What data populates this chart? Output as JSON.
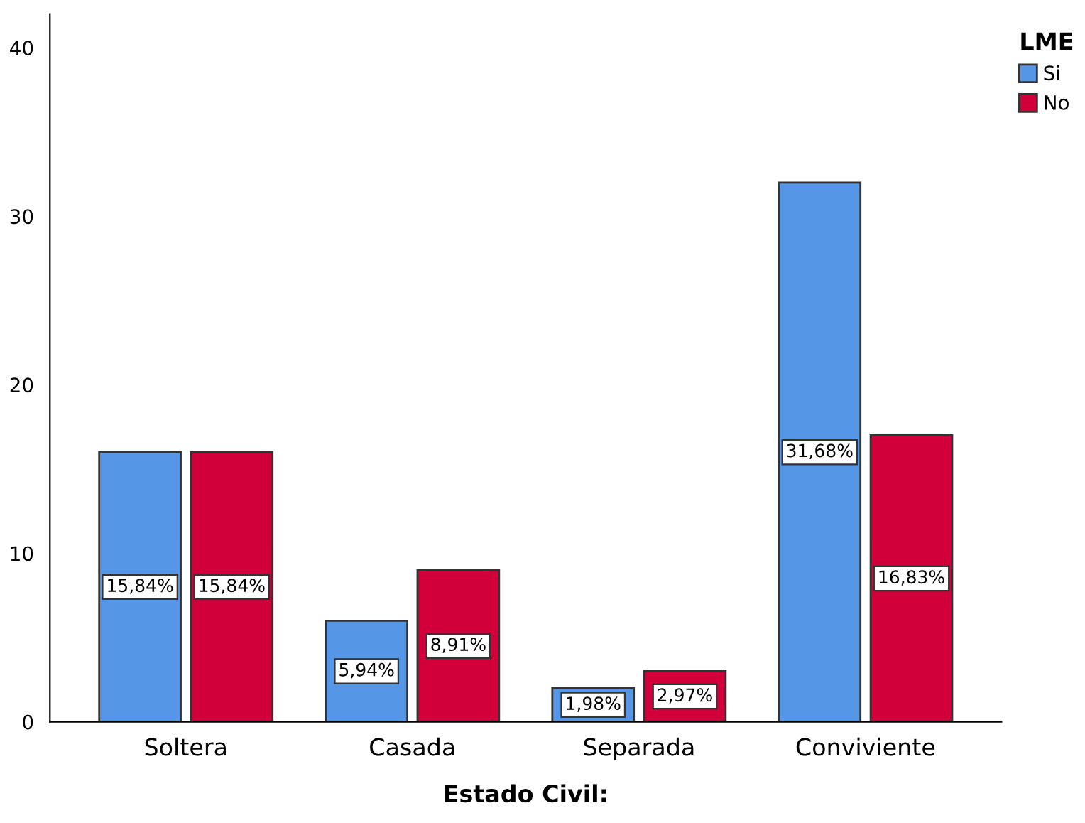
{
  "chart_data": {
    "type": "bar",
    "xlabel": "Estado Civil:",
    "legend_title": "LME",
    "categories": [
      "Soltera",
      "Casada",
      "Separada",
      "Conviviente"
    ],
    "series": [
      {
        "name": "Si",
        "color": "#5596e6",
        "values": [
          16,
          6,
          2,
          32
        ]
      },
      {
        "name": "No",
        "color": "#d1003a",
        "values": [
          16,
          9,
          3,
          17
        ]
      }
    ],
    "annotations": [
      "15,84%",
      "5,94%",
      "1,98%",
      "31,68%",
      "15,84%",
      "8,91%",
      "2,97%",
      "16,83%"
    ],
    "ylim": [
      0,
      42
    ],
    "yticks": [
      0,
      10,
      20,
      30,
      40
    ],
    "grid": false,
    "legend": "top right"
  }
}
